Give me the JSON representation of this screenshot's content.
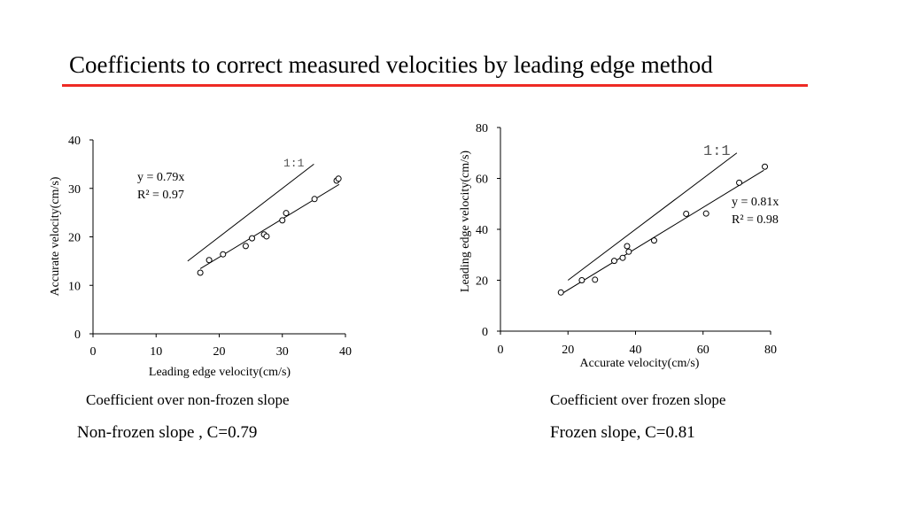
{
  "slide": {
    "title": "Coefficients to correct measured velocities by leading edge method",
    "accent_color": "#ee2a24"
  },
  "captions": {
    "left": "Coefficient over non-frozen slope",
    "right": "Coefficient over frozen slope"
  },
  "summary": {
    "left": "Non-frozen slope , C=0.79",
    "right": "Frozen slope,  C=0.81"
  },
  "chart_data": [
    {
      "type": "scatter",
      "xlabel": "Leading edge velocity(cm/s)",
      "ylabel": "Accurate velocity(cm/s)",
      "xlim": [
        0,
        40
      ],
      "ylim": [
        0,
        40
      ],
      "xticks": [
        "0",
        "10",
        "20",
        "30",
        "40"
      ],
      "yticks": [
        "0",
        "10",
        "20",
        "30",
        "40"
      ],
      "equation": "y = 0.79x",
      "r_squared": "R² = 0.97",
      "reference_label": "1:1",
      "grid": false,
      "trendline": {
        "slope": 0.79,
        "x_range": [
          17,
          39
        ]
      },
      "reference_line": {
        "slope": 1,
        "x_range": [
          15,
          35
        ]
      },
      "points": [
        [
          17,
          12.6
        ],
        [
          18.4,
          15.2
        ],
        [
          20.6,
          16.4
        ],
        [
          24.2,
          18.1
        ],
        [
          25.2,
          19.7
        ],
        [
          27.1,
          20.5
        ],
        [
          27.5,
          20.1
        ],
        [
          30,
          23.4
        ],
        [
          30.6,
          24.9
        ],
        [
          35.1,
          27.8
        ],
        [
          38.6,
          31.6
        ],
        [
          38.9,
          32
        ]
      ]
    },
    {
      "type": "scatter",
      "xlabel": "Accurate velocity(cm/s)",
      "ylabel": "Leading edge velocity(cm/s)",
      "xlim": [
        0,
        80
      ],
      "ylim": [
        0,
        80
      ],
      "xticks": [
        "0",
        "20",
        "40",
        "60",
        "80"
      ],
      "yticks": [
        "0",
        "20",
        "40",
        "60",
        "80"
      ],
      "equation": "y = 0.81x",
      "r_squared": "R² = 0.98",
      "reference_label": "1:1",
      "grid": false,
      "trendline": {
        "slope": 0.81,
        "x_range": [
          18,
          78
        ]
      },
      "reference_line": {
        "slope": 1,
        "x_range": [
          20,
          70
        ]
      },
      "points": [
        [
          17.9,
          15.2
        ],
        [
          24.1,
          20
        ],
        [
          28,
          20.2
        ],
        [
          33.7,
          27.6
        ],
        [
          36.2,
          28.8
        ],
        [
          37.5,
          33.4
        ],
        [
          38,
          31.2
        ],
        [
          45.5,
          35.6
        ],
        [
          55,
          46.1
        ],
        [
          60.9,
          46.2
        ],
        [
          70.7,
          58.3
        ],
        [
          78.3,
          64.6
        ]
      ]
    }
  ]
}
